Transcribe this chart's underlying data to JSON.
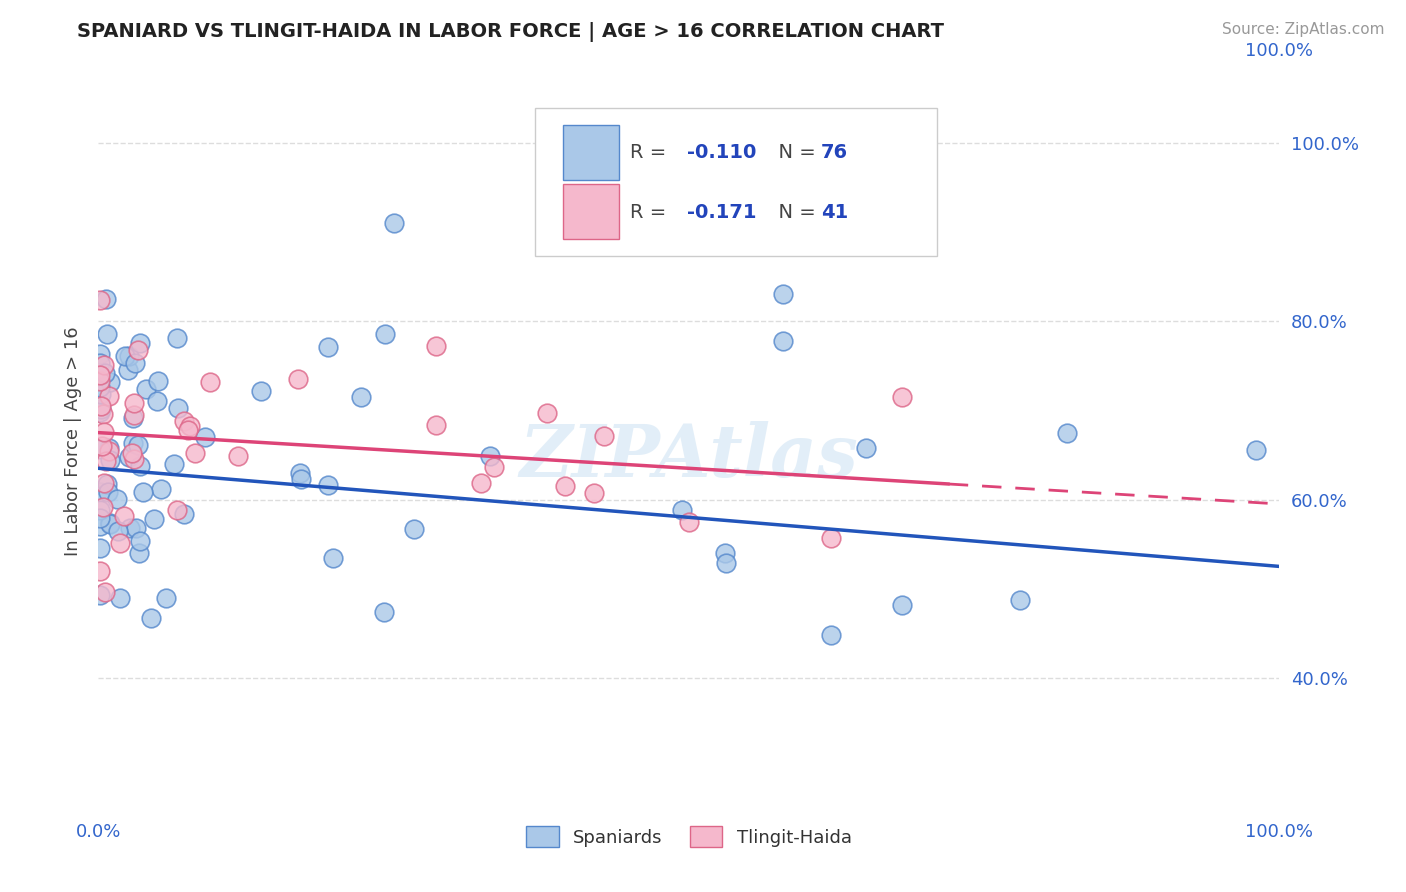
{
  "title": "SPANIARD VS TLINGIT-HAIDA IN LABOR FORCE | AGE > 16 CORRELATION CHART",
  "source": "Source: ZipAtlas.com",
  "ylabel": "In Labor Force | Age > 16",
  "watermark": "ZIPAtlas",
  "xlim": [
    0.0,
    1.0
  ],
  "ylim": [
    0.25,
    1.08
  ],
  "yticks": [
    0.4,
    0.6,
    0.8,
    1.0
  ],
  "yticklabels": [
    "40.0%",
    "60.0%",
    "80.0%",
    "100.0%"
  ],
  "background_color": "#ffffff",
  "grid_color": "#dddddd",
  "series1_color": "#aac8e8",
  "series2_color": "#f5b8cc",
  "series1_edge": "#5588cc",
  "series2_edge": "#dd6688",
  "line1_color": "#2255bb",
  "line2_color": "#dd4477",
  "r1": -0.11,
  "n1": 76,
  "r2": -0.171,
  "n2": 41,
  "line1_x0": 0.0,
  "line1_y0": 0.635,
  "line1_x1": 1.0,
  "line1_y1": 0.525,
  "line2_x0": 0.0,
  "line2_y0": 0.675,
  "line2_x1": 1.0,
  "line2_y1": 0.595,
  "line2_solid_end": 0.72
}
